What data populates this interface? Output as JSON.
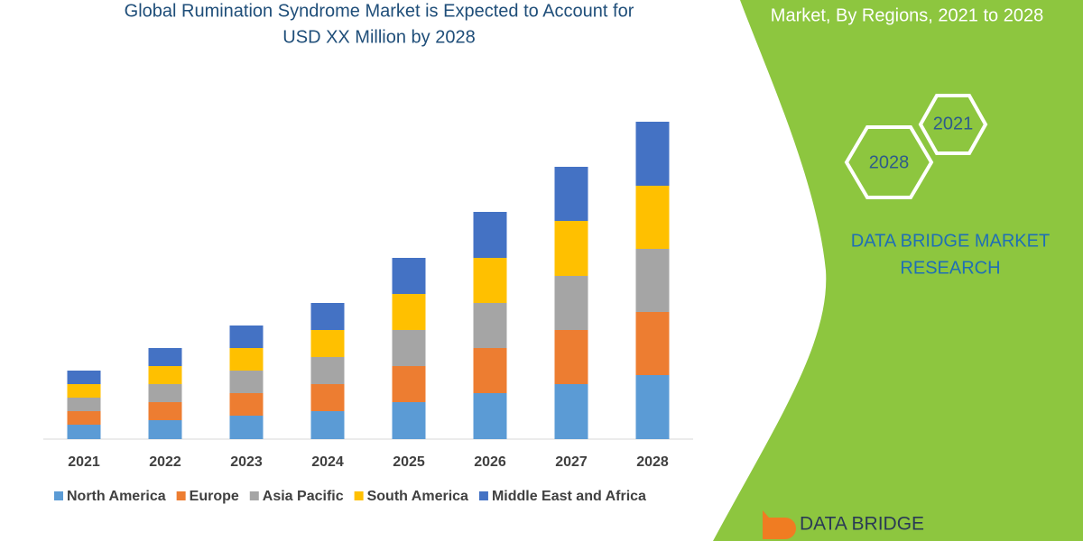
{
  "chart_data": {
    "type": "stacked_bar",
    "title": [
      "Global Rumination Syndrome Market is Expected to Account for",
      "USD XX Million by 2028"
    ],
    "categories": [
      "2021",
      "2022",
      "2023",
      "2024",
      "2025",
      "2026",
      "2027",
      "2028"
    ],
    "series": [
      {
        "name": "North America",
        "color": "#5b9bd5",
        "values": [
          16,
          21,
          26,
          31,
          41,
          51,
          61,
          71
        ]
      },
      {
        "name": "Europe",
        "color": "#ed7d31",
        "values": [
          15,
          20,
          25,
          30,
          40,
          50,
          60,
          70
        ]
      },
      {
        "name": "Asia Pacific",
        "color": "#a5a5a5",
        "values": [
          15,
          20,
          25,
          30,
          40,
          50,
          60,
          70
        ]
      },
      {
        "name": "South America",
        "color": "#ffc000",
        "values": [
          15,
          20,
          25,
          30,
          40,
          50,
          61,
          70
        ]
      },
      {
        "name": "Middle East and Africa",
        "color": "#4472c4",
        "values": [
          15,
          20,
          25,
          30,
          40,
          51,
          60,
          71
        ]
      }
    ]
  },
  "panel": {
    "heading": "Market, By Regions, 2021 to 2028",
    "hexagons": [
      "2021",
      "2028"
    ],
    "brand": [
      "DATA BRIDGE MARKET",
      "RESEARCH"
    ],
    "logo": "DATA BRIDGE"
  }
}
